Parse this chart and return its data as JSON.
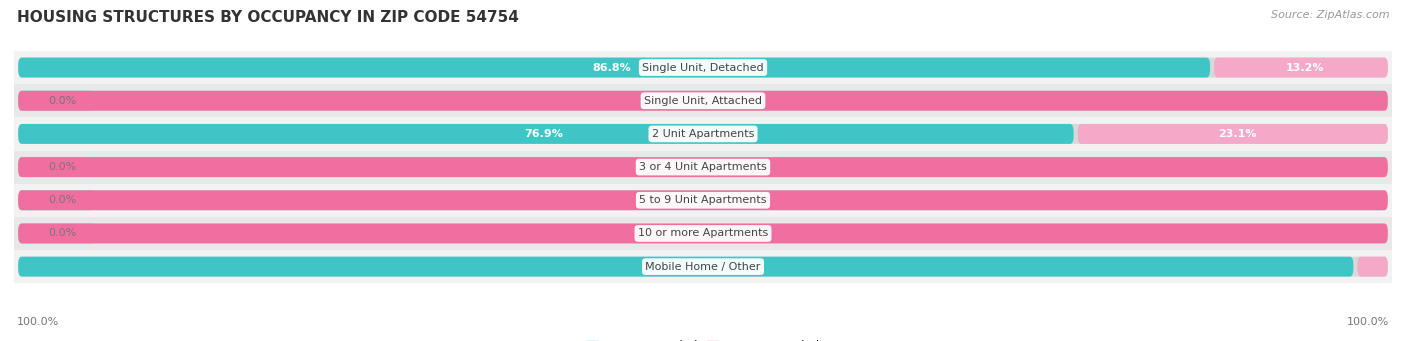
{
  "title": "HOUSING STRUCTURES BY OCCUPANCY IN ZIP CODE 54754",
  "source": "Source: ZipAtlas.com",
  "categories": [
    "Single Unit, Detached",
    "Single Unit, Attached",
    "2 Unit Apartments",
    "3 or 4 Unit Apartments",
    "5 to 9 Unit Apartments",
    "10 or more Apartments",
    "Mobile Home / Other"
  ],
  "owner_pct": [
    86.8,
    0.0,
    76.9,
    0.0,
    0.0,
    0.0,
    97.2
  ],
  "renter_pct": [
    13.2,
    100.0,
    23.1,
    100.0,
    100.0,
    100.0,
    2.8
  ],
  "owner_color": "#3ec6c6",
  "renter_color_full": "#f06fa0",
  "renter_color_light": "#f5a8c8",
  "owner_stub_color": "#7dd8d8",
  "row_bg_even": "#f2f2f2",
  "row_bg_odd": "#e8e8e8",
  "bar_track_color": "#d8d8d8",
  "title_color": "#333333",
  "source_color": "#999999",
  "label_color": "#444444",
  "pct_label_color_inside": "#ffffff",
  "pct_label_color_outside": "#888888",
  "title_fontsize": 11,
  "source_fontsize": 8,
  "cat_label_fontsize": 8,
  "pct_fontsize": 8,
  "legend_fontsize": 8.5,
  "axis_pct_fontsize": 8,
  "bar_height": 0.6,
  "figw": 14.06,
  "figh": 3.41
}
